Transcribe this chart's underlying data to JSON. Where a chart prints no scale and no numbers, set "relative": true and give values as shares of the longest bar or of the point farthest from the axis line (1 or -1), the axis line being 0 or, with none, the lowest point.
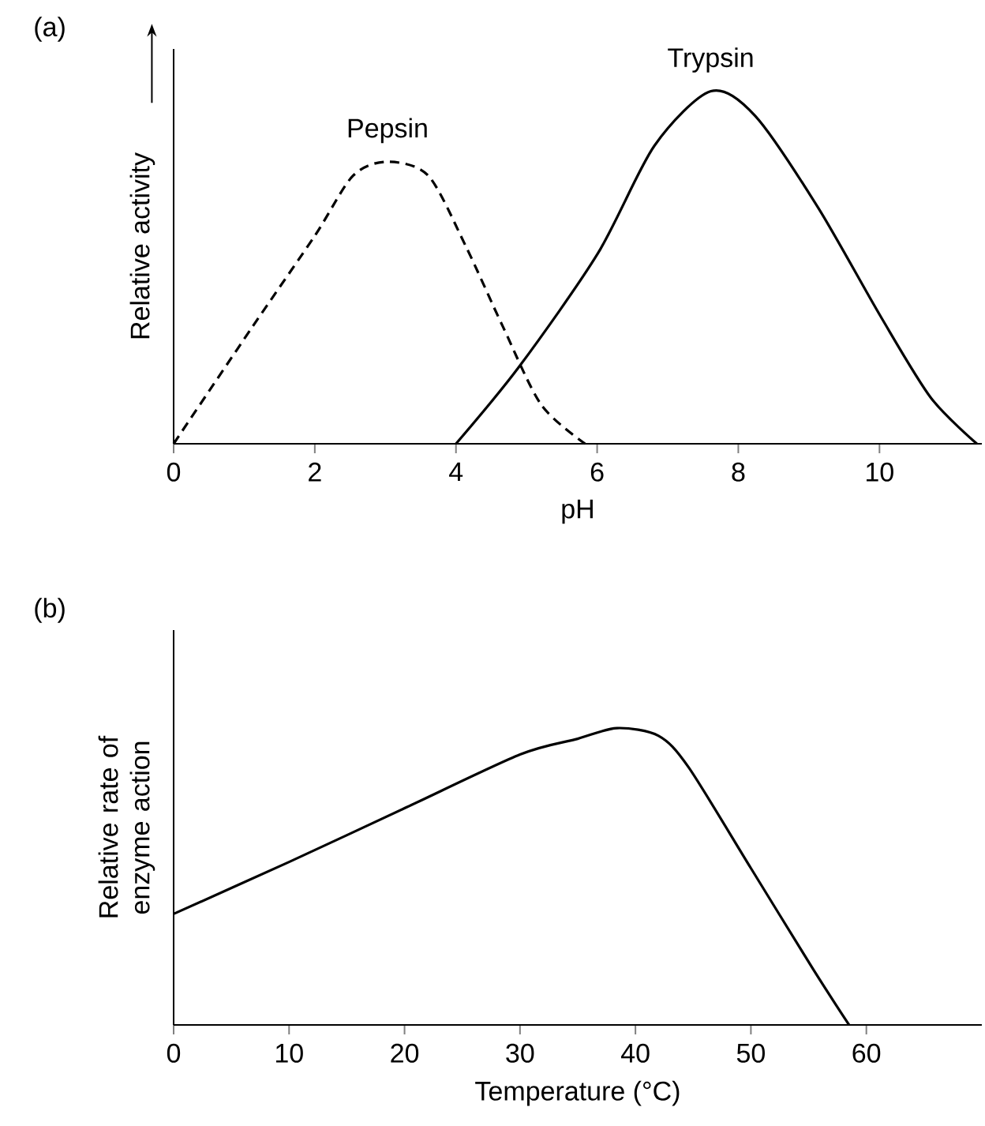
{
  "chart_data": [
    {
      "type": "line",
      "annotations": [
        "(a)"
      ],
      "xlabel": "pH",
      "ylabel": "Relative activity",
      "relative": true,
      "tick_labels": "x",
      "xlim": [
        0,
        11.45
      ],
      "xticks": [
        0,
        2,
        4,
        6,
        8,
        10
      ],
      "series": [
        {
          "name": "Pepsin",
          "color": "#000000",
          "line_style": "dashed",
          "x": [
            0,
            1.11,
            2.0,
            2.54,
            3.03,
            3.61,
            4.14,
            4.67,
            5.21,
            5.83
          ],
          "values": [
            0,
            0.33,
            0.59,
            0.76,
            0.8,
            0.76,
            0.56,
            0.33,
            0.11,
            0
          ]
        },
        {
          "name": "Trypsin",
          "color": "#000000",
          "line_style": "solid",
          "x": [
            4,
            4.9,
            6.01,
            6.81,
            7.61,
            8.24,
            9.13,
            10.02,
            10.73,
            11.38
          ],
          "values": [
            0,
            0.22,
            0.54,
            0.845,
            1.0,
            0.93,
            0.67,
            0.36,
            0.13,
            0
          ]
        }
      ]
    },
    {
      "type": "line",
      "annotations": [
        "(b)"
      ],
      "xlabel": "Temperature (°C)",
      "ylabel": "Relative rate of enzyme action",
      "relative": true,
      "tick_labels": "x",
      "xlim": [
        0,
        70
      ],
      "xticks": [
        0,
        10,
        20,
        30,
        40,
        50,
        60
      ],
      "series": [
        {
          "color": "#000000",
          "line_style": "solid",
          "x": [
            0,
            10,
            20,
            30,
            35,
            38.4,
            42,
            44.6,
            50,
            55.4,
            58.5
          ],
          "values": [
            0.374,
            0.549,
            0.73,
            0.911,
            0.964,
            1.0,
            0.974,
            0.868,
            0.528,
            0.187,
            0
          ]
        }
      ]
    }
  ]
}
